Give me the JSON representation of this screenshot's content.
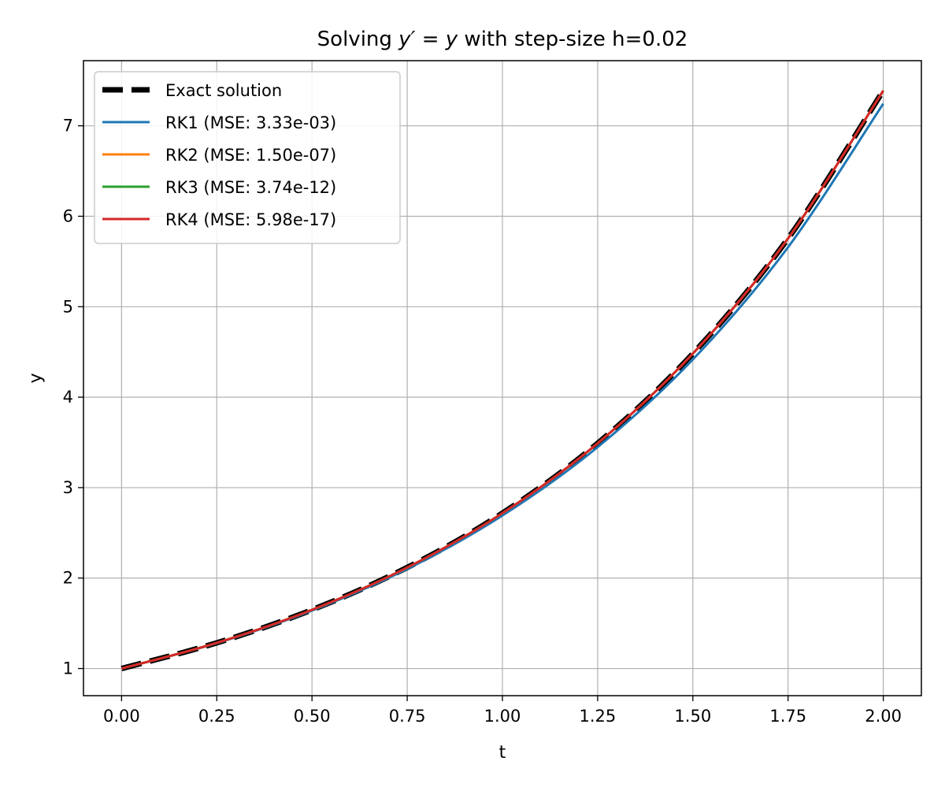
{
  "chart_data": {
    "type": "line",
    "title_prefix": "Solving ",
    "title_equation": "y′ = y",
    "title_suffix": " with step-size h=0.02",
    "xlabel": "t",
    "ylabel": "y",
    "xlim": [
      -0.1,
      2.1
    ],
    "ylim": [
      0.7,
      7.72
    ],
    "xticks": [
      0.0,
      0.25,
      0.5,
      0.75,
      1.0,
      1.25,
      1.5,
      1.75,
      2.0
    ],
    "xtick_labels": [
      "0.00",
      "0.25",
      "0.50",
      "0.75",
      "1.00",
      "1.25",
      "1.50",
      "1.75",
      "2.00"
    ],
    "yticks": [
      1,
      2,
      3,
      4,
      5,
      6,
      7
    ],
    "ytick_labels": [
      "1",
      "2",
      "3",
      "4",
      "5",
      "6",
      "7"
    ],
    "grid": true,
    "legend_position": "upper-left",
    "series": [
      {
        "name": "Exact solution",
        "color": "#000000",
        "style": "dashed",
        "x": [
          0.0,
          0.25,
          0.5,
          0.75,
          1.0,
          1.25,
          1.5,
          1.75,
          2.0
        ],
        "y": [
          1.0,
          1.284,
          1.649,
          2.117,
          2.718,
          3.49,
          4.482,
          5.755,
          7.389
        ]
      },
      {
        "name": "RK1 (MSE: 3.33e-03)",
        "color": "#1f77b4",
        "style": "solid",
        "x": [
          0.0,
          0.25,
          0.5,
          0.75,
          1.0,
          1.25,
          1.5,
          1.75,
          2.0
        ],
        "y": [
          1.0,
          1.281,
          1.641,
          2.101,
          2.692,
          3.448,
          4.417,
          5.658,
          7.245
        ]
      },
      {
        "name": "RK2 (MSE: 1.50e-07)",
        "color": "#ff7f0e",
        "style": "solid",
        "x": [
          0.0,
          0.25,
          0.5,
          0.75,
          1.0,
          1.25,
          1.5,
          1.75,
          2.0
        ],
        "y": [
          1.0,
          1.284,
          1.649,
          2.117,
          2.718,
          3.49,
          4.482,
          5.755,
          7.389
        ]
      },
      {
        "name": "RK3 (MSE: 3.74e-12)",
        "color": "#2ca02c",
        "style": "solid",
        "x": [
          0.0,
          0.25,
          0.5,
          0.75,
          1.0,
          1.25,
          1.5,
          1.75,
          2.0
        ],
        "y": [
          1.0,
          1.284,
          1.649,
          2.117,
          2.718,
          3.49,
          4.482,
          5.755,
          7.389
        ]
      },
      {
        "name": "RK4 (MSE: 5.98e-17)",
        "color": "#d62728",
        "style": "solid",
        "x": [
          0.0,
          0.25,
          0.5,
          0.75,
          1.0,
          1.25,
          1.5,
          1.75,
          2.0
        ],
        "y": [
          1.0,
          1.284,
          1.649,
          2.117,
          2.718,
          3.49,
          4.482,
          5.755,
          7.389
        ]
      }
    ]
  }
}
